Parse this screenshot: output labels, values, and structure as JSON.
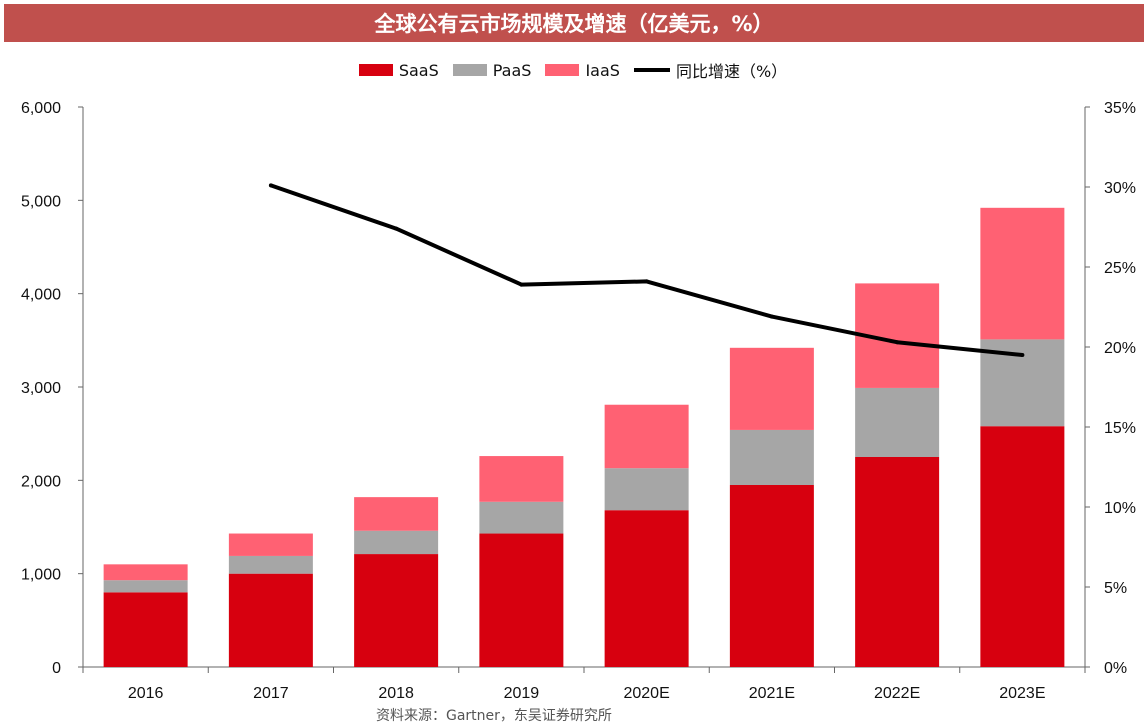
{
  "chart_data": {
    "type": "bar",
    "title": "全球公有云市场规模及增速（亿美元，%）",
    "categories": [
      "2016",
      "2017",
      "2018",
      "2019",
      "2020E",
      "2021E",
      "2022E",
      "2023E"
    ],
    "stacked": true,
    "series": [
      {
        "name": "SaaS",
        "type": "bar",
        "axis": "left",
        "color": "#D7000F",
        "values": [
          800,
          1000,
          1210,
          1430,
          1680,
          1950,
          2250,
          2580
        ]
      },
      {
        "name": "PaaS",
        "type": "bar",
        "axis": "left",
        "color": "#A6A6A6",
        "values": [
          130,
          190,
          250,
          340,
          450,
          590,
          740,
          930
        ]
      },
      {
        "name": "IaaS",
        "type": "bar",
        "axis": "left",
        "color": "#FF6173",
        "values": [
          170,
          240,
          360,
          490,
          680,
          880,
          1120,
          1410
        ]
      },
      {
        "name": "同比增速（%）",
        "type": "line",
        "axis": "right",
        "color": "#000000",
        "values": [
          null,
          30.1,
          27.4,
          23.9,
          24.1,
          21.9,
          20.3,
          19.5
        ]
      }
    ],
    "y_left": {
      "min": 0,
      "max": 6000,
      "ticks": [
        0,
        1000,
        2000,
        3000,
        4000,
        5000,
        6000
      ],
      "tick_labels": [
        "0",
        "1,000",
        "2,000",
        "3,000",
        "4,000",
        "5,000",
        "6,000"
      ]
    },
    "y_right": {
      "min": 0,
      "max": 35,
      "ticks": [
        0,
        5,
        10,
        15,
        20,
        25,
        30,
        35
      ],
      "tick_labels": [
        "0%",
        "5%",
        "10%",
        "15%",
        "20%",
        "25%",
        "30%",
        "35%"
      ]
    },
    "legend_position": "top-center",
    "grid": false
  },
  "source_note": "资料来源：Gartner，东吴证券研究所"
}
